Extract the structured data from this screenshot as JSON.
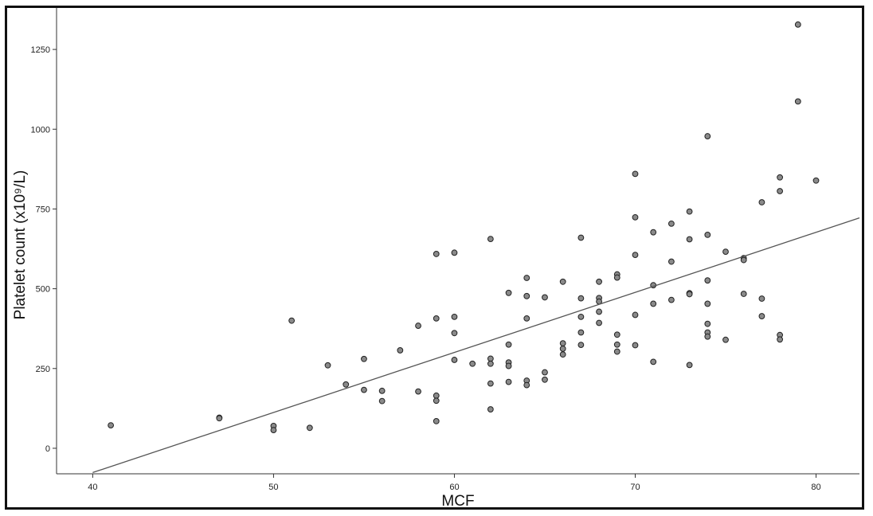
{
  "chart_data": {
    "type": "scatter",
    "xlabel": "MCF",
    "ylabel": "Platelet count (x10⁹/L)",
    "xlim": [
      38,
      82.4
    ],
    "ylim": [
      -80,
      1380
    ],
    "x_ticks": [
      40,
      50,
      60,
      70,
      80
    ],
    "y_ticks": [
      0,
      250,
      500,
      750,
      1000,
      1250
    ],
    "grid": false,
    "legend": "none",
    "marker_color": "#8a8a8a",
    "line_color": "#555555",
    "fit_line": {
      "x": [
        40,
        82.4
      ],
      "y": [
        -76,
        722
      ]
    },
    "points": [
      [
        41,
        72
      ],
      [
        47,
        96
      ],
      [
        47,
        94
      ],
      [
        50,
        70
      ],
      [
        50,
        57
      ],
      [
        51,
        400
      ],
      [
        52,
        64
      ],
      [
        53,
        260
      ],
      [
        54,
        200
      ],
      [
        55,
        280
      ],
      [
        55,
        183
      ],
      [
        56,
        180
      ],
      [
        56,
        148
      ],
      [
        57,
        307
      ],
      [
        58,
        384
      ],
      [
        58,
        178
      ],
      [
        59,
        609
      ],
      [
        59,
        407
      ],
      [
        59,
        165
      ],
      [
        59,
        149
      ],
      [
        59,
        85
      ],
      [
        60,
        613
      ],
      [
        60,
        412
      ],
      [
        60,
        361
      ],
      [
        60,
        277
      ],
      [
        61,
        265
      ],
      [
        62,
        656
      ],
      [
        62,
        281
      ],
      [
        62,
        265
      ],
      [
        62,
        203
      ],
      [
        62,
        122
      ],
      [
        63,
        487
      ],
      [
        63,
        325
      ],
      [
        63,
        269
      ],
      [
        63,
        258
      ],
      [
        63,
        208
      ],
      [
        64,
        534
      ],
      [
        64,
        477
      ],
      [
        64,
        407
      ],
      [
        64,
        212
      ],
      [
        64,
        198
      ],
      [
        65,
        473
      ],
      [
        65,
        238
      ],
      [
        65,
        215
      ],
      [
        66,
        522
      ],
      [
        66,
        329
      ],
      [
        66,
        312
      ],
      [
        66,
        294
      ],
      [
        67,
        660
      ],
      [
        67,
        470
      ],
      [
        67,
        412
      ],
      [
        67,
        363
      ],
      [
        67,
        324
      ],
      [
        68,
        522
      ],
      [
        68,
        471
      ],
      [
        68,
        460
      ],
      [
        68,
        428
      ],
      [
        68,
        393
      ],
      [
        69,
        545
      ],
      [
        69,
        535
      ],
      [
        69,
        356
      ],
      [
        69,
        325
      ],
      [
        69,
        303
      ],
      [
        70,
        860
      ],
      [
        70,
        724
      ],
      [
        70,
        606
      ],
      [
        70,
        418
      ],
      [
        70,
        323
      ],
      [
        71,
        677
      ],
      [
        71,
        511
      ],
      [
        71,
        453
      ],
      [
        71,
        271
      ],
      [
        72,
        704
      ],
      [
        72,
        585
      ],
      [
        72,
        465
      ],
      [
        73,
        742
      ],
      [
        73,
        655
      ],
      [
        73,
        486
      ],
      [
        73,
        483
      ],
      [
        73,
        261
      ],
      [
        74,
        978
      ],
      [
        74,
        669
      ],
      [
        74,
        526
      ],
      [
        74,
        453
      ],
      [
        74,
        390
      ],
      [
        74,
        363
      ],
      [
        74,
        350
      ],
      [
        75,
        616
      ],
      [
        75,
        340
      ],
      [
        76,
        596
      ],
      [
        76,
        590
      ],
      [
        76,
        484
      ],
      [
        77,
        771
      ],
      [
        77,
        469
      ],
      [
        77,
        414
      ],
      [
        78,
        849
      ],
      [
        78,
        806
      ],
      [
        78,
        355
      ],
      [
        78,
        341
      ],
      [
        79,
        1328
      ],
      [
        79,
        1087
      ],
      [
        80,
        839
      ]
    ]
  }
}
